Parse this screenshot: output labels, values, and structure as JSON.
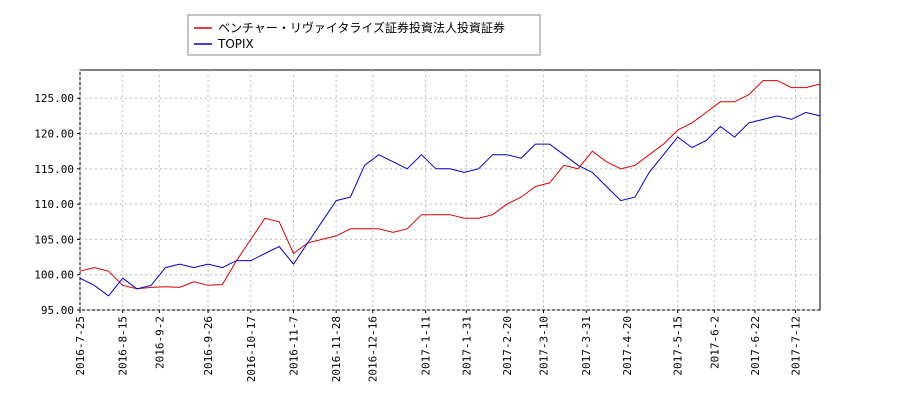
{
  "chart_data": {
    "type": "line",
    "x": [
      "2016-7-25",
      "2016-8-1",
      "2016-8-8",
      "2016-8-15",
      "2016-8-22",
      "2016-8-29",
      "2016-9-5",
      "2016-9-12",
      "2016-9-19",
      "2016-9-26",
      "2016-10-3",
      "2016-10-10",
      "2016-10-17",
      "2016-10-24",
      "2016-10-31",
      "2016-11-7",
      "2016-11-14",
      "2016-11-21",
      "2016-11-28",
      "2016-12-5",
      "2016-12-12",
      "2016-12-19",
      "2016-12-26",
      "2017-1-2",
      "2017-1-9",
      "2017-1-16",
      "2017-1-23",
      "2017-1-30",
      "2017-2-6",
      "2017-2-13",
      "2017-2-20",
      "2017-2-27",
      "2017-3-6",
      "2017-3-13",
      "2017-3-20",
      "2017-3-27",
      "2017-4-3",
      "2017-4-10",
      "2017-4-17",
      "2017-4-24",
      "2017-5-1",
      "2017-5-8",
      "2017-5-15",
      "2017-5-22",
      "2017-5-29",
      "2017-6-5",
      "2017-6-12",
      "2017-6-19",
      "2017-6-26",
      "2017-7-3",
      "2017-7-10",
      "2017-7-17",
      "2017-7-24"
    ],
    "series": [
      {
        "name": "ベンチャー・リヴァイタライズ証券投資法人投資証券",
        "color": "#dd0000",
        "values": [
          100.5,
          101,
          100.5,
          98.5,
          98,
          98.2,
          98.3,
          98.2,
          99,
          98.5,
          98.6,
          102,
          105,
          108,
          107.5,
          103,
          104.5,
          105,
          105.5,
          106.5,
          106.5,
          106.5,
          106,
          106.5,
          108.5,
          108.5,
          108.5,
          108,
          108,
          108.5,
          110,
          111,
          112.5,
          113,
          115.5,
          115,
          117.5,
          116,
          115,
          115.5,
          117,
          118.5,
          120.5,
          121.5,
          123,
          124.5,
          124.5,
          125.5,
          127.5,
          127.5,
          126.5,
          126.5,
          127
        ]
      },
      {
        "name": "TOPIX",
        "color": "#0000cc",
        "values": [
          99.5,
          98.5,
          97,
          99.5,
          98,
          98.5,
          101,
          101.5,
          101,
          101.5,
          101,
          102,
          102,
          103,
          104,
          101.5,
          104.5,
          107.5,
          110.5,
          111,
          115.5,
          117,
          116,
          115,
          117,
          115,
          115,
          114.5,
          115,
          117,
          117,
          116.5,
          118.5,
          118.5,
          117,
          115.5,
          114.5,
          112.5,
          110.5,
          111,
          114.5,
          117,
          119.5,
          118,
          119,
          121,
          119.5,
          121.5,
          122,
          122.5,
          122,
          123,
          122.5
        ]
      }
    ],
    "xlim": [
      "2016-7-25",
      "2017-7-24"
    ],
    "xticks": [
      "2016-7-25",
      "2016-8-15",
      "2016-9-2",
      "2016-9-26",
      "2016-10-17",
      "2016-11-7",
      "2016-11-28",
      "2016-12-16",
      "2017-1-11",
      "2017-1-31",
      "2017-2-20",
      "2017-3-10",
      "2017-3-31",
      "2017-4-20",
      "2017-5-15",
      "2017-6-2",
      "2017-6-22",
      "2017-7-12"
    ],
    "ylim": [
      95,
      129
    ],
    "yticks": [
      {
        "value": 95,
        "label": "95.00"
      },
      {
        "value": 100,
        "label": "100.00"
      },
      {
        "value": 105,
        "label": "105.00"
      },
      {
        "value": 110,
        "label": "110.00"
      },
      {
        "value": 115,
        "label": "115.00"
      },
      {
        "value": 120,
        "label": "120.00"
      },
      {
        "value": 125,
        "label": "125.00"
      }
    ],
    "grid": true
  }
}
